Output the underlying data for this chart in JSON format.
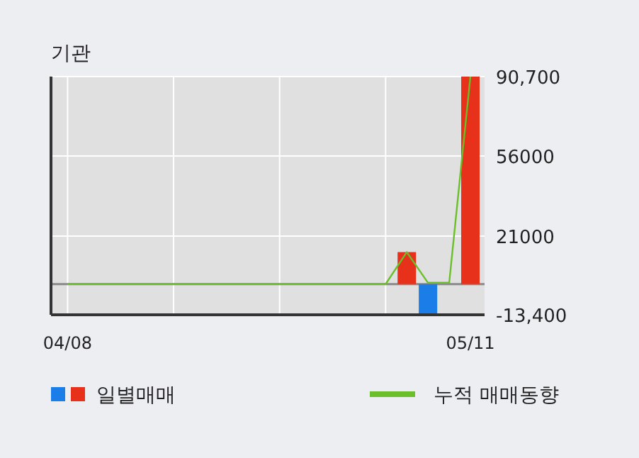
{
  "chart_data": {
    "type": "bar",
    "title": "기관",
    "categories": [
      "04/08",
      null,
      null,
      null,
      null,
      null,
      null,
      null,
      null,
      null,
      null,
      null,
      null,
      null,
      null,
      null,
      null,
      null,
      null,
      "05/11"
    ],
    "series": [
      {
        "name": "일별매매",
        "colors": [
          "#e8311a",
          "#e8311a",
          "#e8311a",
          "#e8311a",
          "#e8311a",
          "#e8311a",
          "#e8311a",
          "#e8311a",
          "#e8311a",
          "#e8311a",
          "#e8311a",
          "#e8311a",
          "#e8311a",
          "#e8311a",
          "#e8311a",
          "#e8311a",
          "#e8311a",
          "#1a7de8",
          "#e8311a",
          "#e8311a"
        ],
        "values": [
          0,
          0,
          0,
          0,
          0,
          0,
          0,
          0,
          0,
          0,
          0,
          0,
          0,
          0,
          0,
          0,
          14000,
          -13400,
          0,
          90700
        ]
      },
      {
        "name": "누적 매매동향",
        "type": "line",
        "color": "#6abf2a",
        "values": [
          0,
          0,
          0,
          0,
          0,
          0,
          0,
          0,
          0,
          0,
          0,
          0,
          0,
          0,
          0,
          0,
          14000,
          600,
          600,
          90700
        ]
      }
    ],
    "ylim": [
      -13400,
      90700
    ],
    "yticks": [
      {
        "value": 90700,
        "label": "90,700"
      },
      56000,
      21000,
      {
        "value": -13400,
        "label": "-13,400"
      }
    ],
    "grid": true,
    "legend": "bottom"
  }
}
